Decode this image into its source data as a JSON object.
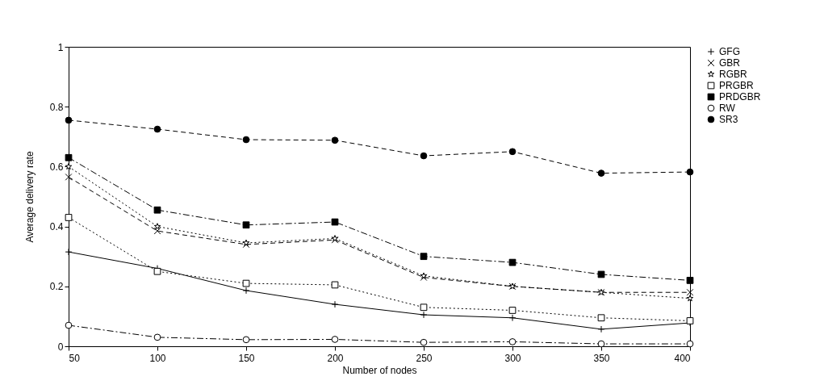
{
  "chart_data": {
    "type": "line",
    "xlabel": "Number of nodes",
    "ylabel": "Average delivery rate",
    "x": [
      50,
      100,
      150,
      200,
      250,
      300,
      350,
      400
    ],
    "xlim": [
      50,
      400
    ],
    "xticks": [
      50,
      100,
      150,
      200,
      250,
      300,
      350,
      400
    ],
    "ylim": [
      0,
      1
    ],
    "yticks": [
      0,
      0.2,
      0.4,
      0.6,
      0.8,
      1
    ],
    "grid": false,
    "legend": "top right",
    "series": [
      {
        "name": "GFG",
        "color": "#000000",
        "marker": "cross",
        "line_style": "solid",
        "values": [
          0.315,
          0.26,
          0.186,
          0.14,
          0.105,
          0.095,
          0.057,
          0.078
        ]
      },
      {
        "name": "GBR",
        "color": "#000000",
        "marker": "x",
        "line_style": "dashed",
        "values": [
          0.565,
          0.385,
          0.34,
          0.355,
          0.23,
          0.2,
          0.18,
          0.18
        ]
      },
      {
        "name": "RGBR",
        "color": "#000000",
        "marker": "star",
        "line_style": "dotted",
        "values": [
          0.6,
          0.4,
          0.345,
          0.36,
          0.235,
          0.2,
          0.18,
          0.16
        ]
      },
      {
        "name": "PRGBR",
        "color": "#000000",
        "marker": "square-open",
        "line_style": "dotted",
        "values": [
          0.43,
          0.25,
          0.21,
          0.205,
          0.13,
          0.12,
          0.095,
          0.085
        ]
      },
      {
        "name": "PRDGBR",
        "color": "#000000",
        "marker": "square",
        "line_style": "dashdot",
        "values": [
          0.63,
          0.455,
          0.405,
          0.415,
          0.3,
          0.28,
          0.24,
          0.22
        ]
      },
      {
        "name": "RW",
        "color": "#000000",
        "marker": "circle-open",
        "line_style": "dashdot",
        "values": [
          0.07,
          0.03,
          0.022,
          0.023,
          0.013,
          0.015,
          0.008,
          0.008
        ]
      },
      {
        "name": "SR3",
        "color": "#000000",
        "marker": "circle",
        "line_style": "dashed",
        "values": [
          0.755,
          0.725,
          0.69,
          0.688,
          0.636,
          0.65,
          0.578,
          0.582
        ]
      }
    ]
  }
}
